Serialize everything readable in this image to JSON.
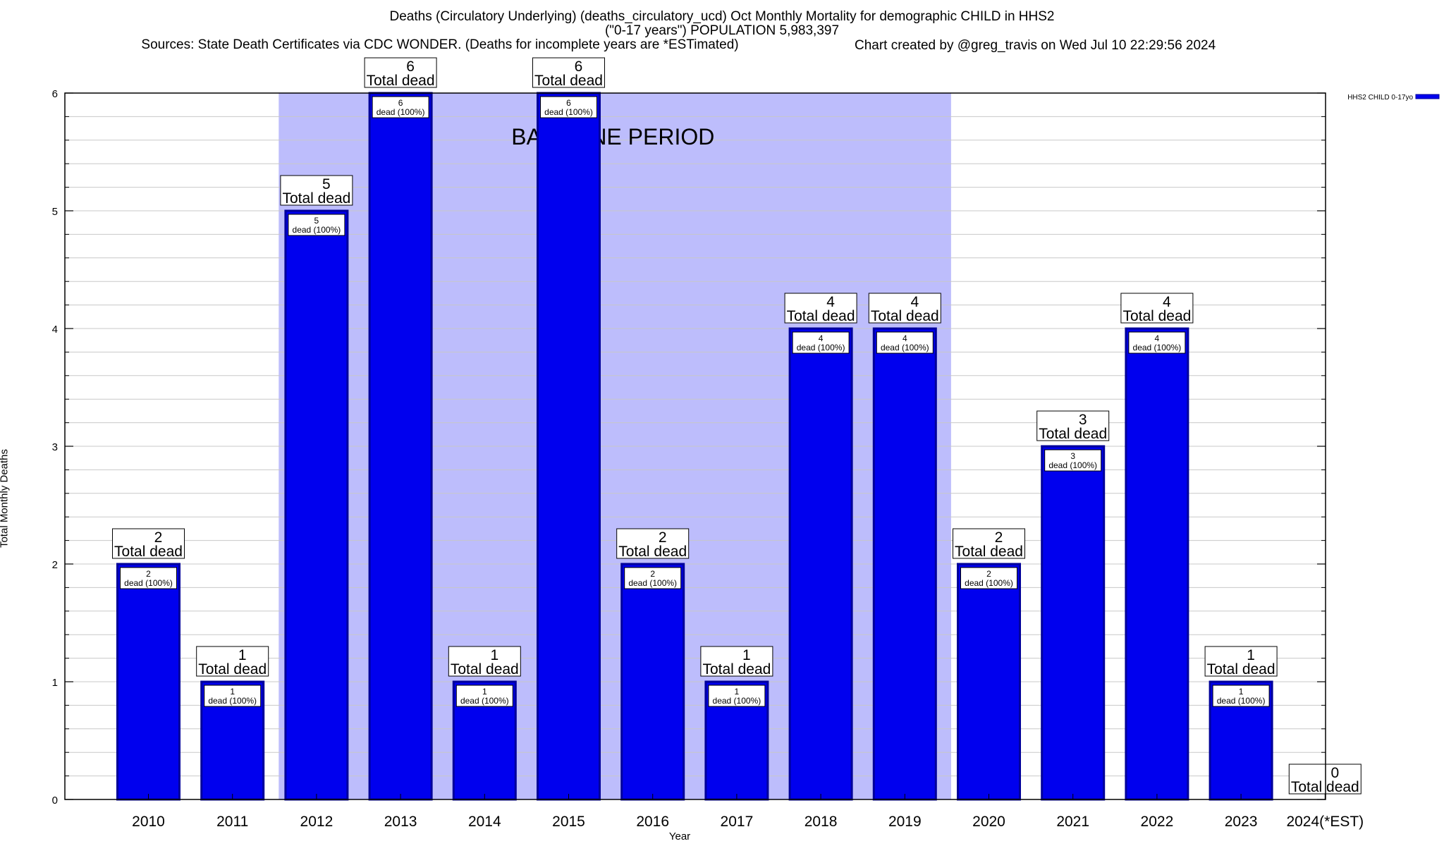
{
  "chart_data": {
    "type": "bar",
    "title": "Deaths (Circulatory Underlying) (deaths_circulatory_ucd) Oct Monthly Mortality for demographic CHILD in HHS2",
    "subtitle": "(\"0-17 years\") POPULATION 5,983,397",
    "sources": "Sources: State Death Certificates via CDC WONDER. (Deaths for incomplete years are *ESTimated)",
    "credit": "Chart created by @greg_travis on Wed Jul 10 22:29:56 2024",
    "xlabel": "Year",
    "ylabel": "Total Monthly Deaths",
    "ylim": [
      0,
      6
    ],
    "yticks": [
      "0",
      "1",
      "2",
      "3",
      "4",
      "5",
      "6"
    ],
    "grid": true,
    "legend_position": "top-right",
    "annotation": "BASELINE PERIOD",
    "baseline_start": "2012",
    "baseline_end": "2019",
    "categories": [
      "2010",
      "2011",
      "2012",
      "2013",
      "2014",
      "2015",
      "2016",
      "2017",
      "2018",
      "2019",
      "2020",
      "2021",
      "2022",
      "2023",
      "2024(*EST)"
    ],
    "series": [
      {
        "name": "HHS2 CHILD 0-17yo",
        "color": "#0000ee",
        "values": [
          2,
          1,
          5,
          6,
          1,
          6,
          2,
          1,
          4,
          4,
          2,
          3,
          4,
          1,
          0
        ]
      }
    ],
    "total_label": "Total dead",
    "inner_label": "dead (100%)",
    "colors": {
      "bar": "#0000ee",
      "bar_border": "#00009a",
      "baseline_shade": "#bdbdfc",
      "grid": "#c8c8c8"
    }
  }
}
